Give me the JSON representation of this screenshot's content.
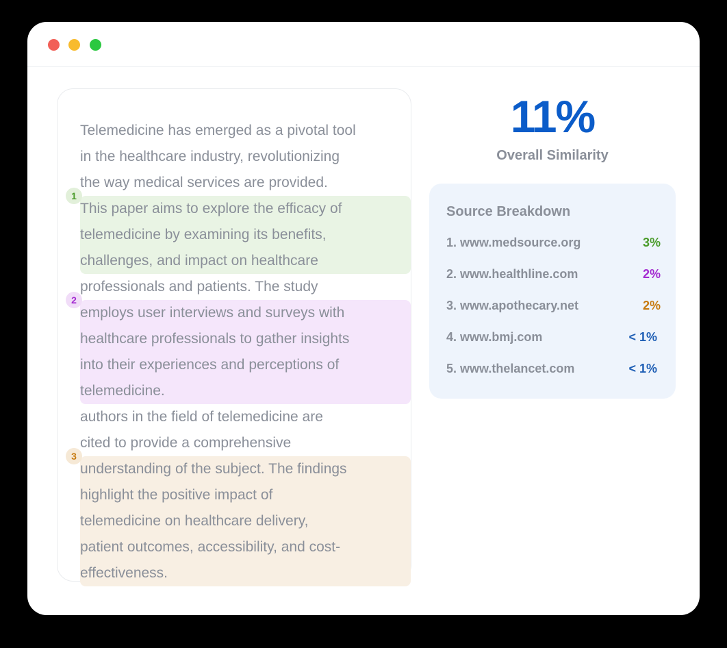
{
  "document": {
    "score": "11%",
    "score_label": "Overall Similarity",
    "segments": [
      {
        "lines": [
          "Telemedicine has emerged as a pivotal tool",
          "in the healthcare industry, revolutionizing",
          "the way medical services are provided."
        ]
      },
      {
        "badge": "1",
        "lines": [
          "This paper aims to explore the efficacy of",
          "telemedicine by examining its benefits,",
          "challenges, and impact on healthcare"
        ]
      },
      {
        "lines": [
          "professionals and patients. The study"
        ]
      },
      {
        "badge": "2",
        "lines": [
          "employs user interviews and surveys with",
          "healthcare professionals to gather insights",
          "into their experiences and perceptions of",
          "telemedicine."
        ]
      },
      {
        "lines": [
          "authors in the field of telemedicine are",
          "cited to provide a comprehensive"
        ]
      },
      {
        "badge": "3",
        "lines": [
          "understanding of the subject. The findings",
          "highlight the positive impact of",
          "telemedicine on healthcare delivery,",
          "patient outcomes, accessibility, and cost-",
          "effectiveness."
        ]
      }
    ],
    "breakdown": {
      "title": "Source Breakdown",
      "sources": [
        {
          "name": "1. www.medsource.org",
          "share": "3%"
        },
        {
          "name": "2. www.healthline.com",
          "share": "2%"
        },
        {
          "name": "3. www.apothecary.net",
          "share": "2%"
        },
        {
          "name": "4. www.bmj.com",
          "share": "< 1%"
        },
        {
          "name": "5. www.thelancet.com",
          "share": "< 1%"
        }
      ]
    }
  }
}
